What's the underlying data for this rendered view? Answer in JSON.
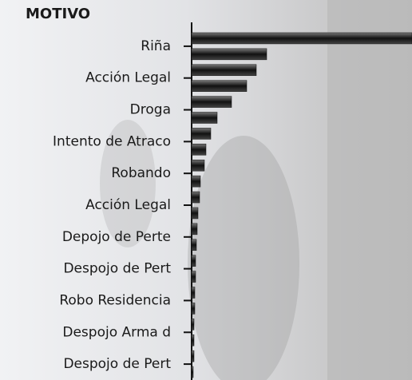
{
  "chart_data": {
    "type": "hbar",
    "title": "MOTIVO",
    "categories": [
      "Riña",
      null,
      "Acción Legal",
      null,
      "Droga",
      null,
      "Intento de Atraco",
      null,
      "Robando",
      null,
      "Acción Legal",
      null,
      "Depojo de Perte",
      null,
      "Despojo de Pert",
      null,
      "Robo Residencia",
      null,
      "Despojo Arma d",
      null,
      "Despojo de Pert",
      null
    ],
    "values": [
      276,
      94,
      81,
      69,
      50,
      32,
      24,
      18,
      16,
      11,
      10,
      8,
      7,
      6,
      5,
      5,
      4,
      4,
      3,
      3,
      3,
      2
    ],
    "color": "#111111",
    "xlim": [
      0,
      276
    ]
  }
}
